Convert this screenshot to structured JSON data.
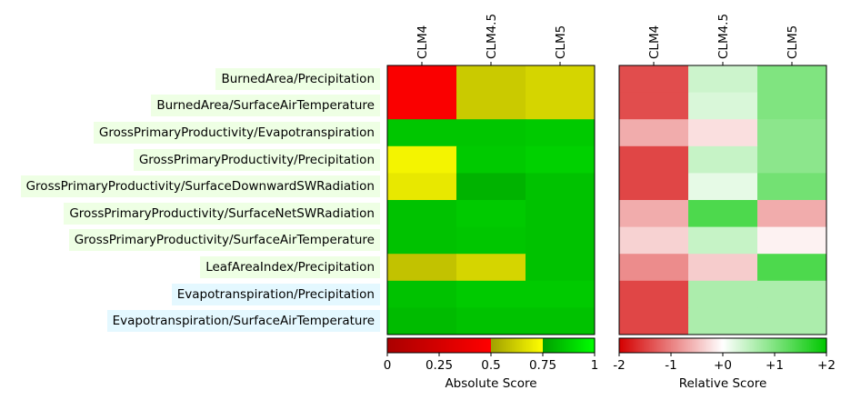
{
  "chart_data": {
    "type": "heatmap",
    "rows": [
      "BurnedArea/Precipitation",
      "BurnedArea/SurfaceAirTemperature",
      "GrossPrimaryProductivity/Evapotranspiration",
      "GrossPrimaryProductivity/Precipitation",
      "GrossPrimaryProductivity/SurfaceDownwardSWRadiation",
      "GrossPrimaryProductivity/SurfaceNetSWRadiation",
      "GrossPrimaryProductivity/SurfaceAirTemperature",
      "LeafAreaIndex/Precipitation",
      "Evapotranspiration/Precipitation",
      "Evapotranspiration/SurfaceAirTemperature"
    ],
    "row_label_bg": [
      "#eeffe4",
      "#eeffe4",
      "#eeffe4",
      "#eeffe4",
      "#eeffe4",
      "#eeffe4",
      "#eeffe4",
      "#eeffe4",
      "#e4f8ff",
      "#e4f8ff"
    ],
    "columns": [
      "CLM4",
      "CLM4.5",
      "CLM5"
    ],
    "absolute": {
      "colorbar_label": "Absolute Score",
      "ticks": [
        "0",
        "0.25",
        "0.5",
        "0.75",
        "1"
      ],
      "tick_values": [
        0,
        0.25,
        0.5,
        0.75,
        1
      ],
      "values": [
        [
          0.47,
          0.61,
          0.64
        ],
        [
          0.47,
          0.61,
          0.64
        ],
        [
          0.85,
          0.85,
          0.86
        ],
        [
          0.72,
          0.86,
          0.88
        ],
        [
          0.69,
          0.8,
          0.84
        ],
        [
          0.84,
          0.86,
          0.84
        ],
        [
          0.84,
          0.85,
          0.84
        ],
        [
          0.59,
          0.64,
          0.84
        ],
        [
          0.84,
          0.86,
          0.86
        ],
        [
          0.82,
          0.84,
          0.84
        ]
      ]
    },
    "relative": {
      "colorbar_label": "Relative Score",
      "ticks": [
        "-2",
        "-1",
        "+0",
        "+1",
        "+2"
      ],
      "tick_values": [
        -2,
        -1,
        0,
        1,
        2
      ],
      "values": [
        [
          -1.4,
          0.4,
          1.0
        ],
        [
          -1.4,
          0.3,
          1.0
        ],
        [
          -0.65,
          -0.25,
          0.9
        ],
        [
          -1.45,
          0.45,
          0.9
        ],
        [
          -1.45,
          0.2,
          1.1
        ],
        [
          -0.65,
          1.4,
          -0.65
        ],
        [
          -0.35,
          0.45,
          -0.1
        ],
        [
          -0.9,
          -0.4,
          1.4
        ],
        [
          -1.45,
          0.65,
          0.65
        ],
        [
          -1.45,
          0.65,
          0.65
        ]
      ]
    }
  }
}
